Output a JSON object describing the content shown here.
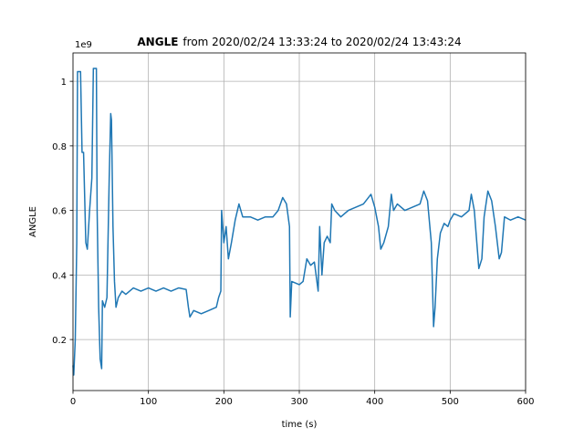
{
  "chart_data": {
    "type": "line",
    "title_bold": "ANGLE",
    "title_rest": "from 2020/02/24 13:33:24 to 2020/02/24 13:43:24",
    "xlabel": "time (s)",
    "ylabel": "ANGLE",
    "y_offset_label": "1e9",
    "xlim": [
      0,
      600
    ],
    "ylim": [
      0.042,
      1.088
    ],
    "xticks": [
      0,
      100,
      200,
      300,
      400,
      500,
      600
    ],
    "yticks": [
      0.2,
      0.4,
      0.6,
      0.8,
      1.0
    ],
    "grid": true,
    "color": "#1f77b4",
    "x": [
      0,
      1,
      3,
      5,
      6,
      10,
      12,
      14,
      17,
      19,
      22,
      25,
      27,
      31,
      32,
      34,
      36,
      38,
      39,
      42,
      45,
      48,
      50,
      51,
      53,
      55,
      57,
      60,
      65,
      70,
      80,
      90,
      100,
      110,
      120,
      130,
      140,
      150,
      153,
      155,
      160,
      170,
      180,
      190,
      193,
      196,
      197,
      200,
      203,
      206,
      210,
      215,
      220,
      225,
      235,
      245,
      255,
      265,
      272,
      278,
      283,
      287,
      288,
      290,
      300,
      305,
      310,
      315,
      320,
      325,
      327,
      330,
      333,
      337,
      341,
      343,
      347,
      355,
      365,
      375,
      385,
      395,
      400,
      405,
      408,
      412,
      418,
      422,
      425,
      430,
      440,
      450,
      460,
      465,
      470,
      475,
      478,
      480,
      483,
      487,
      492,
      497,
      500,
      505,
      515,
      525,
      528,
      532,
      538,
      542,
      545,
      550,
      555,
      560,
      565,
      568,
      572,
      580,
      590,
      600
    ],
    "values": [
      0.12,
      0.09,
      0.2,
      0.5,
      1.03,
      1.03,
      0.78,
      0.78,
      0.5,
      0.48,
      0.6,
      0.7,
      1.04,
      1.04,
      0.6,
      0.3,
      0.14,
      0.11,
      0.32,
      0.3,
      0.33,
      0.7,
      0.9,
      0.88,
      0.55,
      0.38,
      0.3,
      0.33,
      0.35,
      0.34,
      0.36,
      0.35,
      0.36,
      0.35,
      0.36,
      0.35,
      0.36,
      0.355,
      0.3,
      0.27,
      0.29,
      0.28,
      0.29,
      0.3,
      0.33,
      0.35,
      0.6,
      0.5,
      0.55,
      0.45,
      0.5,
      0.57,
      0.62,
      0.58,
      0.58,
      0.57,
      0.58,
      0.58,
      0.6,
      0.64,
      0.62,
      0.55,
      0.27,
      0.38,
      0.37,
      0.38,
      0.45,
      0.43,
      0.44,
      0.35,
      0.55,
      0.4,
      0.5,
      0.52,
      0.5,
      0.62,
      0.6,
      0.58,
      0.6,
      0.61,
      0.62,
      0.65,
      0.61,
      0.55,
      0.48,
      0.5,
      0.55,
      0.65,
      0.6,
      0.62,
      0.6,
      0.61,
      0.62,
      0.66,
      0.63,
      0.5,
      0.24,
      0.3,
      0.45,
      0.53,
      0.56,
      0.55,
      0.57,
      0.59,
      0.58,
      0.6,
      0.65,
      0.6,
      0.42,
      0.45,
      0.58,
      0.66,
      0.63,
      0.55,
      0.45,
      0.47,
      0.58,
      0.57,
      0.58,
      0.57
    ]
  }
}
